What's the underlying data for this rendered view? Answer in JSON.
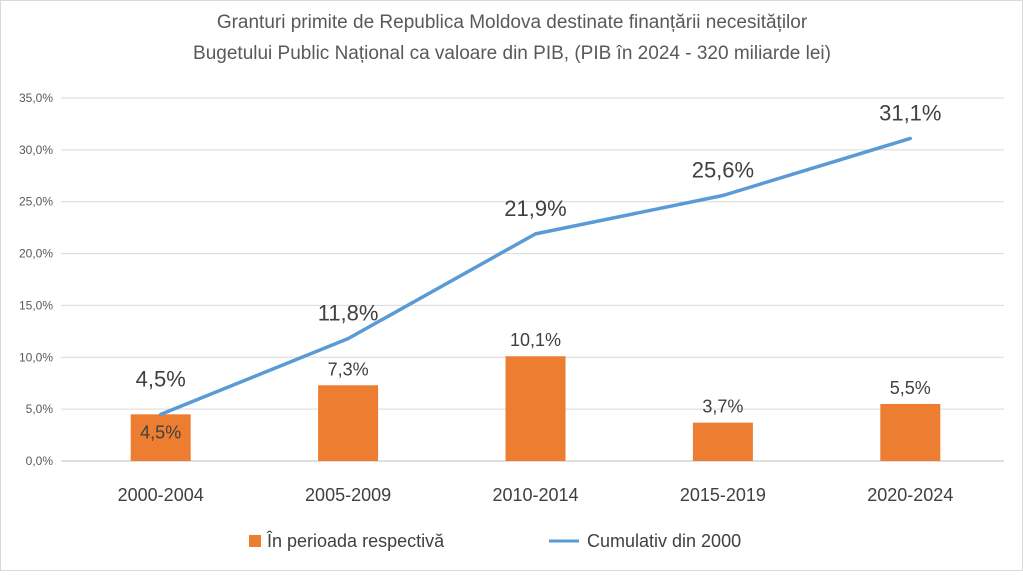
{
  "chart_data": {
    "type": "bar+line",
    "title": "Granturi primite de Republica Moldova destinate finanțării necesităților",
    "subtitle": "Bugetului Public Național ca valoare din PIB,  (PIB în 2024 - 320 miliarde lei)",
    "categories": [
      "2000-2004",
      "2005-2009",
      "2010-2014",
      "2015-2019",
      "2020-2024"
    ],
    "series": [
      {
        "name": "În perioada respectivă",
        "type": "bar",
        "color": "#ED7D31",
        "values": [
          4.5,
          7.3,
          10.1,
          3.7,
          5.5
        ],
        "labels": [
          "4,5%",
          "7,3%",
          "10,1%",
          "3,7%",
          "5,5%"
        ]
      },
      {
        "name": "Cumulativ din 2000",
        "type": "line",
        "color": "#5B9BD5",
        "values": [
          4.5,
          11.8,
          21.9,
          25.6,
          31.1
        ],
        "labels": [
          "4,5%",
          "11,8%",
          "21,9%",
          "25,6%",
          "31,1%"
        ]
      }
    ],
    "ylim": [
      0,
      35
    ],
    "yticks": [
      0,
      5,
      10,
      15,
      20,
      25,
      30,
      35
    ],
    "ytick_labels": [
      "0,0%",
      "5,0%",
      "10,0%",
      "15,0%",
      "20,0%",
      "25,0%",
      "30,0%",
      "35,0%"
    ],
    "grid": true,
    "legend": "bottom"
  }
}
